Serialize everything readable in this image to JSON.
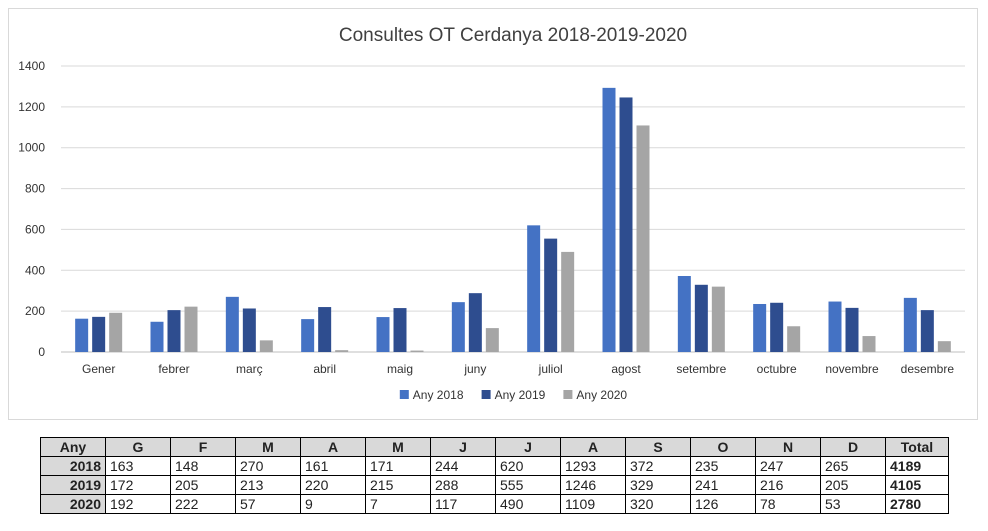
{
  "chart_data": {
    "type": "bar",
    "title": "Consultes OT Cerdanya 2018-2019-2020",
    "categories": [
      "Gener",
      "febrer",
      "març",
      "abril",
      "maig",
      "juny",
      "juliol",
      "agost",
      "setembre",
      "octubre",
      "novembre",
      "desembre"
    ],
    "series": [
      {
        "name": "Any 2018",
        "color": "#4472c4",
        "values": [
          163,
          148,
          270,
          161,
          171,
          244,
          620,
          1293,
          372,
          235,
          247,
          265
        ]
      },
      {
        "name": "Any 2019",
        "color": "#2e4d8f",
        "values": [
          172,
          205,
          213,
          220,
          215,
          288,
          555,
          1246,
          329,
          241,
          216,
          205
        ]
      },
      {
        "name": "Any 2020",
        "color": "#a5a5a5",
        "values": [
          192,
          222,
          57,
          9,
          7,
          117,
          490,
          1109,
          320,
          126,
          78,
          53
        ]
      }
    ],
    "ylim": [
      0,
      1400
    ],
    "yticks": [
      0,
      200,
      400,
      600,
      800,
      1000,
      1200,
      1400
    ],
    "grid": true,
    "legend": "bottom"
  },
  "table": {
    "headers": [
      "Any",
      "G",
      "F",
      "M",
      "A",
      "M",
      "J",
      "J",
      "A",
      "S",
      "O",
      "N",
      "D",
      "Total"
    ],
    "rows": [
      {
        "year": "2018",
        "values": [
          "163",
          "148",
          "270",
          "161",
          "171",
          "244",
          "620",
          "1293",
          "372",
          "235",
          "247",
          "265"
        ],
        "total": "4189"
      },
      {
        "year": "2019",
        "values": [
          "172",
          "205",
          "213",
          "220",
          "215",
          "288",
          "555",
          "1246",
          "329",
          "241",
          "216",
          "205"
        ],
        "total": "4105"
      },
      {
        "year": "2020",
        "values": [
          "192",
          "222",
          "57",
          "9",
          "7",
          "117",
          "490",
          "1109",
          "320",
          "126",
          "78",
          "53"
        ],
        "total": "2780"
      }
    ]
  }
}
